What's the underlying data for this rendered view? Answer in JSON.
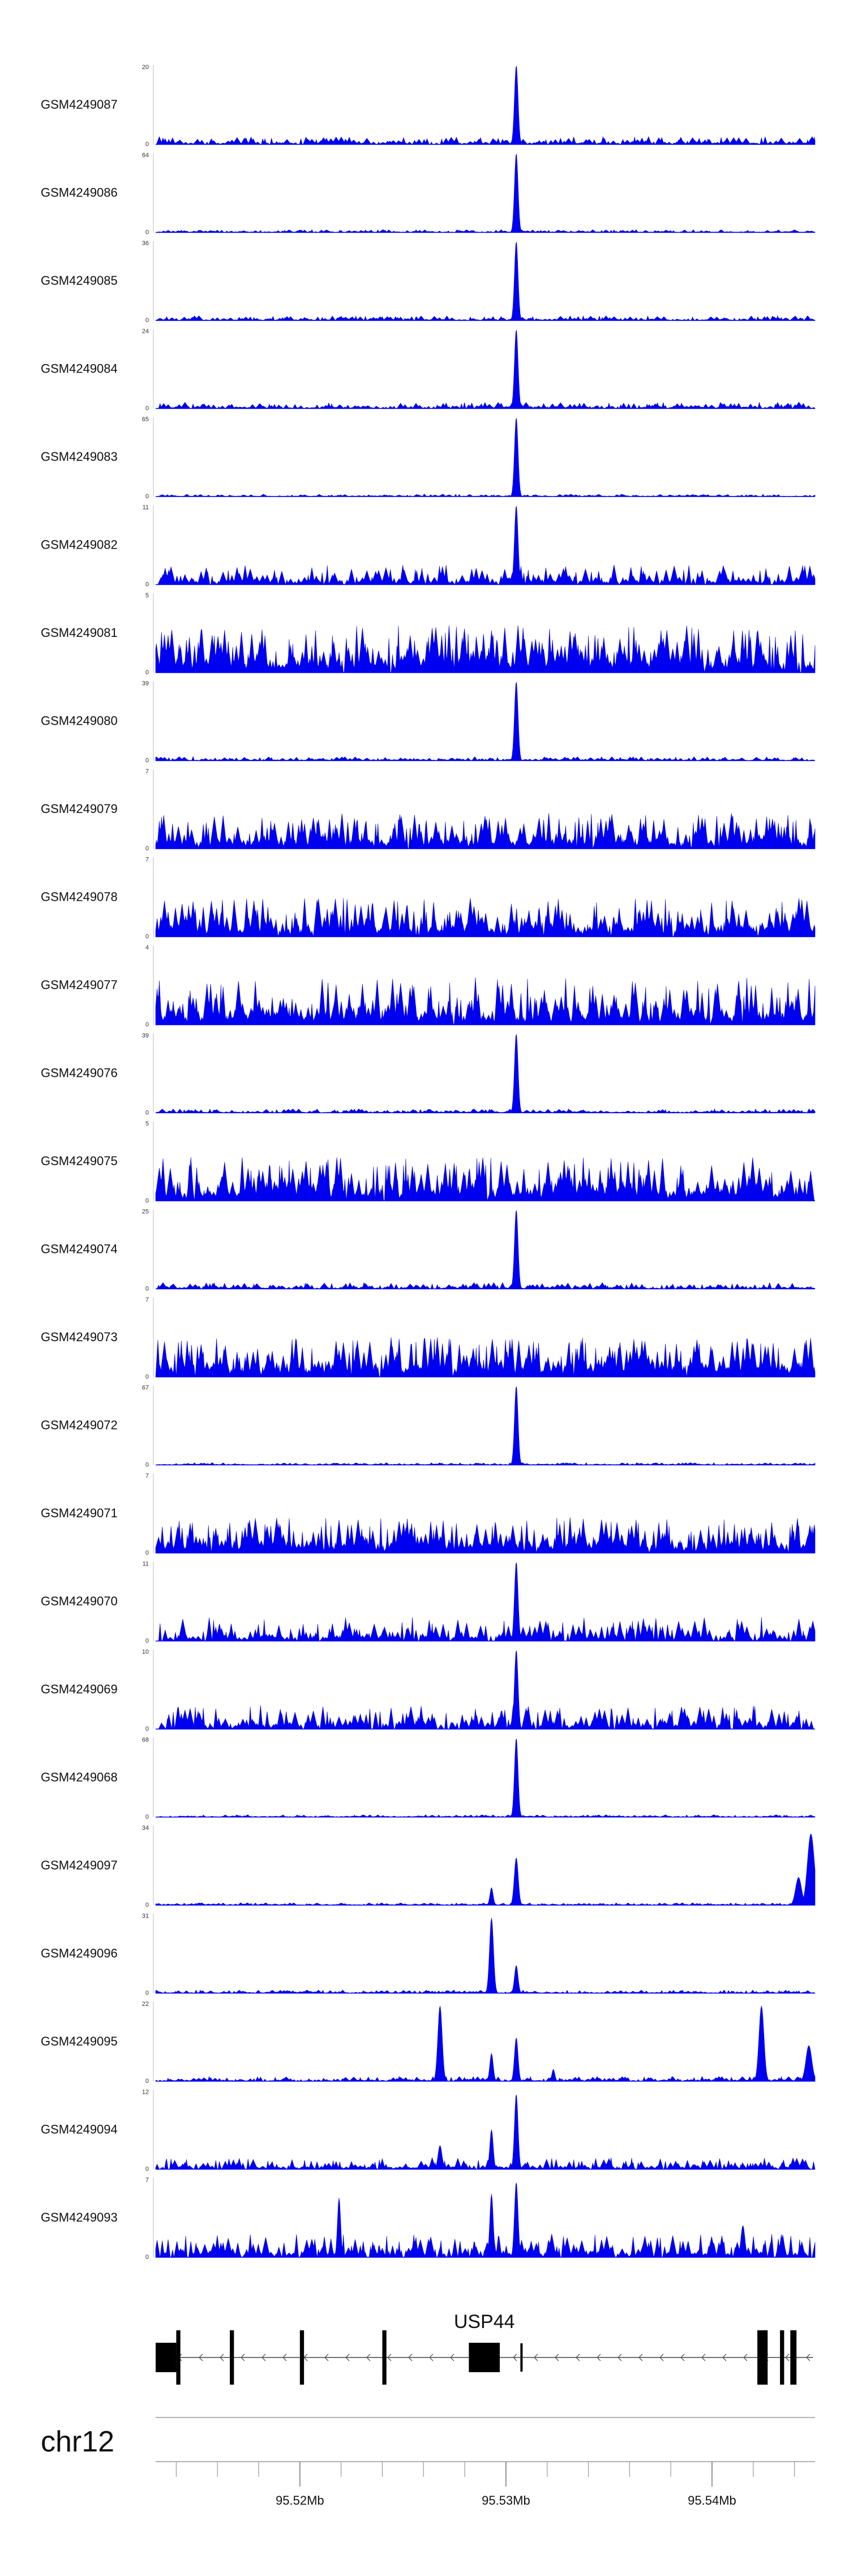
{
  "chart_data": {
    "type": "area",
    "chromosome": "chr12",
    "locus_range": [
      95513000,
      95545000
    ],
    "axis_ticks": [
      "95.52Mb",
      "95.53Mb",
      "95.54Mb"
    ],
    "axis_tick_positions": [
      95520000,
      95530000,
      95540000
    ],
    "track_color": "#0000f0",
    "tracks": [
      {
        "name": "GSM4249087",
        "ymax": 20,
        "noise": 0.1,
        "peaks": [
          [
            95530500,
            1.0,
            180
          ]
        ]
      },
      {
        "name": "GSM4249086",
        "ymax": 64,
        "noise": 0.035,
        "peaks": [
          [
            95530500,
            1.0,
            180
          ]
        ]
      },
      {
        "name": "GSM4249085",
        "ymax": 36,
        "noise": 0.06,
        "peaks": [
          [
            95530500,
            1.0,
            180
          ]
        ]
      },
      {
        "name": "GSM4249084",
        "ymax": 24,
        "noise": 0.08,
        "peaks": [
          [
            95530500,
            1.0,
            180
          ]
        ]
      },
      {
        "name": "GSM4249083",
        "ymax": 65,
        "noise": 0.03,
        "peaks": [
          [
            95530500,
            1.0,
            180
          ]
        ]
      },
      {
        "name": "GSM4249082",
        "ymax": 11,
        "noise": 0.25,
        "peaks": [
          [
            95530500,
            1.0,
            180
          ]
        ]
      },
      {
        "name": "GSM4249081",
        "ymax": 5,
        "noise": 0.6,
        "peaks": []
      },
      {
        "name": "GSM4249080",
        "ymax": 39,
        "noise": 0.05,
        "peaks": [
          [
            95530500,
            1.0,
            180
          ]
        ]
      },
      {
        "name": "GSM4249079",
        "ymax": 7,
        "noise": 0.45,
        "peaks": []
      },
      {
        "name": "GSM4249078",
        "ymax": 7,
        "noise": 0.5,
        "peaks": []
      },
      {
        "name": "GSM4249077",
        "ymax": 4,
        "noise": 0.6,
        "peaks": []
      },
      {
        "name": "GSM4249076",
        "ymax": 39,
        "noise": 0.05,
        "peaks": [
          [
            95530500,
            1.0,
            180
          ]
        ]
      },
      {
        "name": "GSM4249075",
        "ymax": 5,
        "noise": 0.55,
        "peaks": []
      },
      {
        "name": "GSM4249074",
        "ymax": 25,
        "noise": 0.08,
        "peaks": [
          [
            95530500,
            1.0,
            180
          ]
        ]
      },
      {
        "name": "GSM4249073",
        "ymax": 7,
        "noise": 0.5,
        "peaks": []
      },
      {
        "name": "GSM4249072",
        "ymax": 67,
        "noise": 0.03,
        "peaks": [
          [
            95530500,
            1.0,
            180
          ]
        ]
      },
      {
        "name": "GSM4249071",
        "ymax": 7,
        "noise": 0.45,
        "peaks": []
      },
      {
        "name": "GSM4249070",
        "ymax": 11,
        "noise": 0.3,
        "peaks": [
          [
            95530500,
            1.0,
            180
          ]
        ]
      },
      {
        "name": "GSM4249069",
        "ymax": 10,
        "noise": 0.3,
        "peaks": [
          [
            95530500,
            1.0,
            180
          ]
        ]
      },
      {
        "name": "GSM4249068",
        "ymax": 68,
        "noise": 0.03,
        "peaks": [
          [
            95530500,
            1.0,
            180
          ]
        ]
      },
      {
        "name": "GSM4249097",
        "ymax": 34,
        "noise": 0.03,
        "peaks": [
          [
            95530500,
            0.6,
            200
          ],
          [
            95529300,
            0.22,
            160
          ],
          [
            95544800,
            0.9,
            350
          ],
          [
            95544200,
            0.35,
            300
          ]
        ]
      },
      {
        "name": "GSM4249096",
        "ymax": 31,
        "noise": 0.04,
        "peaks": [
          [
            95529300,
            0.95,
            200
          ],
          [
            95530500,
            0.35,
            180
          ]
        ]
      },
      {
        "name": "GSM4249095",
        "ymax": 22,
        "noise": 0.06,
        "peaks": [
          [
            95526800,
            0.95,
            220
          ],
          [
            95529300,
            0.35,
            170
          ],
          [
            95530500,
            0.55,
            180
          ],
          [
            95532300,
            0.15,
            150
          ],
          [
            95542400,
            0.95,
            250
          ],
          [
            95544700,
            0.45,
            300
          ]
        ]
      },
      {
        "name": "GSM4249094",
        "ymax": 12,
        "noise": 0.15,
        "peaks": [
          [
            95530500,
            0.95,
            180
          ],
          [
            95529300,
            0.5,
            170
          ],
          [
            95526800,
            0.3,
            200
          ]
        ]
      },
      {
        "name": "GSM4249093",
        "ymax": 7,
        "noise": 0.3,
        "peaks": [
          [
            95530500,
            0.95,
            180
          ],
          [
            95529300,
            0.8,
            170
          ],
          [
            95521900,
            0.75,
            160
          ],
          [
            95541500,
            0.4,
            200
          ]
        ]
      }
    ],
    "gene": {
      "name": "USP44",
      "strand": "-",
      "start": 95513000,
      "end": 95544900,
      "exons": [
        [
          95513000,
          95514000,
          "thick"
        ],
        [
          95514000,
          95514200,
          "thick"
        ],
        [
          95516600,
          95516800,
          "thick"
        ],
        [
          95520000,
          95520200,
          "thick"
        ],
        [
          95524000,
          95524200,
          "thick"
        ],
        [
          95528200,
          95529700,
          "thick"
        ],
        [
          95530700,
          95530800,
          "thin"
        ],
        [
          95542200,
          95542700,
          "thick"
        ],
        [
          95543300,
          95543500,
          "thick"
        ],
        [
          95543800,
          95544100,
          "thick"
        ]
      ]
    }
  }
}
